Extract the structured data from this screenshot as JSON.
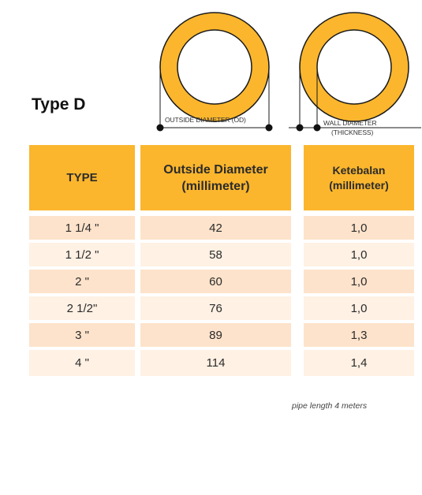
{
  "title": "Type D",
  "diagram": {
    "od_label": "OUTSIDE DIAMETER (OD)",
    "wall_label_1": "WALL DIAMETER",
    "wall_label_2": "(THICKNESS)",
    "colors": {
      "ring": "#fbb62d",
      "stroke": "#1a1a1a"
    }
  },
  "table": {
    "headers": {
      "type": "TYPE",
      "od_1": "Outside Diameter",
      "od_2": "(millimeter)",
      "thick_1": "Ketebalan",
      "thick_2": "(millimeter)"
    },
    "rows": [
      {
        "type": "1 1/4 \"",
        "od": "42",
        "thickness": "1,0"
      },
      {
        "type": "1 1/2 \"",
        "od": "58",
        "thickness": "1,0"
      },
      {
        "type": "2 \"",
        "od": "60",
        "thickness": "1,0"
      },
      {
        "type": "2 1/2\"",
        "od": "76",
        "thickness": "1,0"
      },
      {
        "type": "3 \"",
        "od": "89",
        "thickness": "1,3"
      },
      {
        "type": "4 \"",
        "od": "114",
        "thickness": "1,4"
      }
    ],
    "colors": {
      "header": "#fbb62d",
      "row_dark": "#fde3cb",
      "row_light": "#fff1e4"
    }
  },
  "note": "pipe length 4 meters"
}
